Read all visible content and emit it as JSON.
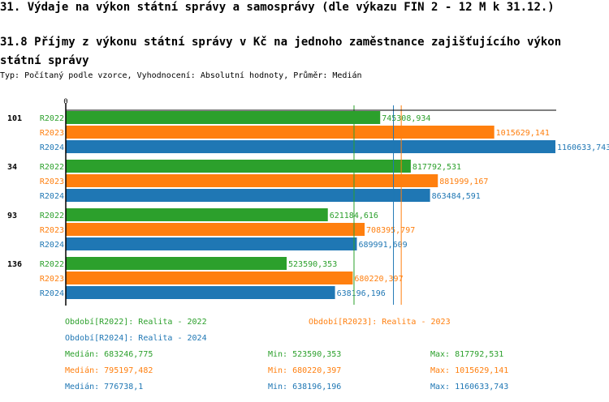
{
  "title": "31. Výdaje na výkon státní správy a samosprávy (dle výkazu FIN 2 - 12 M k 31.12.)",
  "subtitle": "31.8 Příjmy z výkonu státní správy v Kč na jednoho zaměstnance zajišťujícího výkon státní správy",
  "description": "Typ: Počítaný podle vzorce, Vyhodnocení: Absolutní hodnoty, Průměr: Medián",
  "colors": {
    "R2022": "#2ca02c",
    "R2023": "#ff7f0e",
    "R2024": "#1f77b4"
  },
  "chart_data": {
    "type": "bar",
    "orientation": "horizontal",
    "categories": [
      "101",
      "34",
      "93",
      "136"
    ],
    "x_tick_labels": [
      "0"
    ],
    "xlim": [
      0,
      1160633.743
    ],
    "series": [
      {
        "name": "R2022",
        "values": [
          745308.934,
          817792.531,
          621184.616,
          523590.353
        ],
        "labels": [
          "745308,934",
          "817792,531",
          "621184,616",
          "523590,353"
        ]
      },
      {
        "name": "R2023",
        "values": [
          1015629.141,
          881999.167,
          708395.797,
          680220.397
        ],
        "labels": [
          "1015629,141",
          "881999,167",
          "708395,797",
          "680220,397"
        ]
      },
      {
        "name": "R2024",
        "values": [
          1160633.743,
          863484.591,
          689991.609,
          638196.196
        ],
        "labels": [
          "1160633,743",
          "863484,591",
          "689991,609",
          "638196,196"
        ]
      }
    ],
    "median_lines": {
      "R2022": 683246.775,
      "R2023": 795197.482,
      "R2024": 776738.1
    }
  },
  "legend": [
    {
      "series": "R2022",
      "text": "Období[R2022]: Realita - 2022"
    },
    {
      "series": "R2023",
      "text": "Období[R2023]: Realita - 2023"
    },
    {
      "series": "R2024",
      "text": "Období[R2024]: Realita - 2024"
    }
  ],
  "stats": [
    {
      "series": "R2022",
      "median": "Medián: 683246,775",
      "min": "Min: 523590,353",
      "max": "Max: 817792,531"
    },
    {
      "series": "R2023",
      "median": "Medián: 795197,482",
      "min": "Min: 680220,397",
      "max": "Max: 1015629,141"
    },
    {
      "series": "R2024",
      "median": "Medián: 776738,1",
      "min": "Min: 638196,196",
      "max": "Max: 1160633,743"
    }
  ]
}
